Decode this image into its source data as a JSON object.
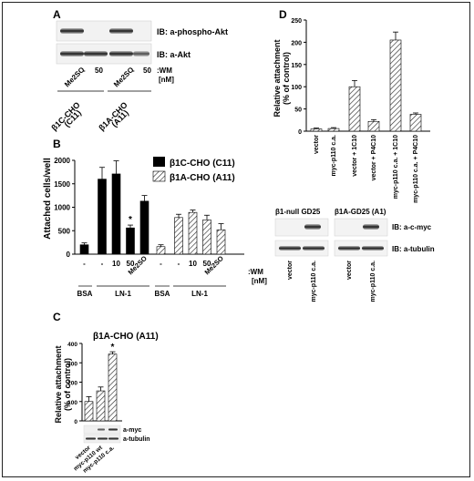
{
  "panels": {
    "A": {
      "letter": "A",
      "blot_labels": [
        "IB: a-phospho-Akt",
        "IB: a-Akt"
      ],
      "lanes": [
        "Me2SO",
        "-",
        "50",
        "Me2SO",
        "-",
        "50"
      ],
      "wm_label": ":WM",
      "nm_label": "[nM]",
      "group_labels": [
        {
          "line1": "β1C-CHO",
          "line2": "(C11)"
        },
        {
          "line1": "β1A-CHO",
          "line2": "(A11)"
        }
      ]
    },
    "B": {
      "letter": "B",
      "ylabel": "Attached cells/well",
      "legend": [
        "β1C-CHO (C11)",
        "β1A-CHO (A11)"
      ],
      "wm_label": ":WM",
      "nm_label": "[nM]",
      "tick_labels": [
        "-",
        "-",
        "10",
        "50",
        "Me2SO",
        "-",
        "-",
        "10",
        "50",
        "Me2SO"
      ],
      "bsa_label": "BSA",
      "ln_label": "LN-1",
      "star": "*"
    },
    "C": {
      "letter": "C",
      "title": "β1A-CHO (A11)",
      "ylabel1": "Relative attachment",
      "ylabel2": "(% of control)",
      "blot_labels": [
        "a-myc",
        "a-tubulin"
      ],
      "star": "*"
    },
    "D": {
      "letter": "D",
      "ylabel1": "Relative attachment",
      "ylabel2": "(% of control)",
      "blot_headers": [
        "β1-null GD25",
        "β1A-GD25 (A1)"
      ],
      "blot_labels": [
        "IB: a-c-myc",
        "IB: a-tubulin"
      ],
      "blot_lanes": [
        "vector",
        "myc-p110 c.a.",
        "vector",
        "myc-p110 c.a."
      ]
    }
  },
  "chart_data": [
    {
      "panel": "B",
      "type": "bar",
      "ylabel": "Attached cells/well",
      "ylim": [
        0,
        2000
      ],
      "yticks": [
        0,
        500,
        1000,
        1500,
        2000
      ],
      "categories": [
        "BSA -",
        "LN-1 -",
        "LN-1 10",
        "LN-1 50",
        "LN-1 Me2SO"
      ],
      "series": [
        {
          "name": "β1C-CHO (C11)",
          "color": "#000000",
          "values": [
            200,
            1600,
            1710,
            560,
            1130
          ],
          "errors": [
            40,
            250,
            280,
            60,
            120
          ]
        },
        {
          "name": "β1A-CHO (A11)",
          "pattern": "hatched",
          "values": [
            160,
            780,
            890,
            730,
            520
          ],
          "errors": [
            40,
            70,
            50,
            100,
            130
          ]
        }
      ],
      "significant": [
        "β1C-CHO (C11) LN-1 50"
      ]
    },
    {
      "panel": "C",
      "type": "bar",
      "title": "β1A-CHO (A11)",
      "ylabel": "Relative attachment (% of control)",
      "ylim": [
        0,
        400
      ],
      "yticks": [
        0,
        100,
        200,
        300,
        400
      ],
      "categories": [
        "vector",
        "myc-p110 wt",
        "myc-p110 c.a."
      ],
      "values": [
        100,
        155,
        345
      ],
      "errors": [
        25,
        20,
        12
      ],
      "pattern": "hatched",
      "significant": [
        "myc-p110 c.a."
      ]
    },
    {
      "panel": "D",
      "type": "bar",
      "ylabel": "Relative attachment (% of control)",
      "ylim": [
        0,
        250
      ],
      "yticks": [
        0,
        50,
        100,
        150,
        200,
        250
      ],
      "categories": [
        "vector",
        "myc-p110 c.a.",
        "vector + 1C10",
        "vector + P4C10",
        "myc-p110 c.a. + 1C10",
        "myc-p110 c.a. + P4C10"
      ],
      "values": [
        5,
        6,
        100,
        22,
        205,
        38
      ],
      "errors": [
        2,
        2,
        14,
        4,
        18,
        3
      ],
      "pattern": "hatched"
    }
  ]
}
